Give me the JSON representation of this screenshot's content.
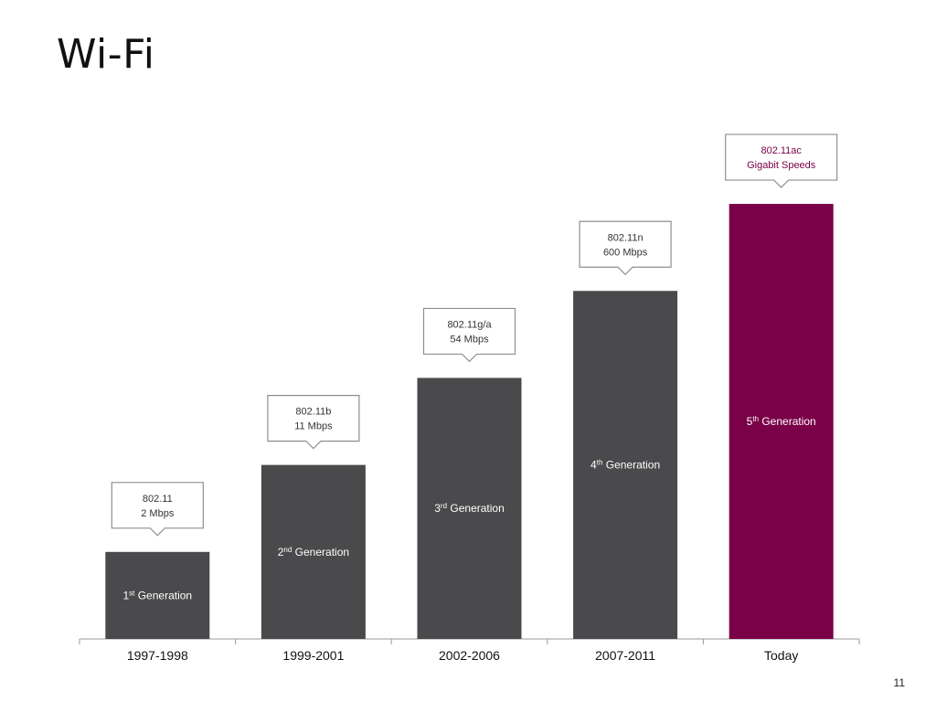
{
  "slide": {
    "title": "Wi-Fi",
    "page_number": "11"
  },
  "colors": {
    "bar_default": "#4a4a4c",
    "bar_highlight": "#7a0048",
    "callout_text_default": "#333333",
    "callout_text_highlight": "#7a0048"
  },
  "chart_data": {
    "type": "bar",
    "title": "",
    "xlabel": "",
    "ylabel": "",
    "categories": [
      "1997-1998",
      "1999-2001",
      "2002-2006",
      "2007-2011",
      "Today"
    ],
    "values": [
      1,
      2,
      3,
      4,
      5
    ],
    "ylim": [
      0,
      5.4
    ],
    "bar_labels": [
      {
        "num": "1",
        "suffix": "st",
        "text": "Generation"
      },
      {
        "num": "2",
        "suffix": "nd",
        "text": "Generation"
      },
      {
        "num": "3",
        "suffix": "rd",
        "text": "Generation"
      },
      {
        "num": "4",
        "suffix": "th",
        "text": "Generation"
      },
      {
        "num": "5",
        "suffix": "th",
        "text": "Generation"
      }
    ],
    "callouts": [
      {
        "line1": "802.11",
        "line2": "2 Mbps"
      },
      {
        "line1": "802.11b",
        "line2": "11  Mbps"
      },
      {
        "line1": "802.11g/a",
        "line2": "54 Mbps"
      },
      {
        "line1": "802.11n",
        "line2": "600 Mbps"
      },
      {
        "line1": "802.11ac",
        "line2": "Gigabit Speeds"
      }
    ],
    "highlight_index": 4,
    "grid": false,
    "legend": "none"
  }
}
